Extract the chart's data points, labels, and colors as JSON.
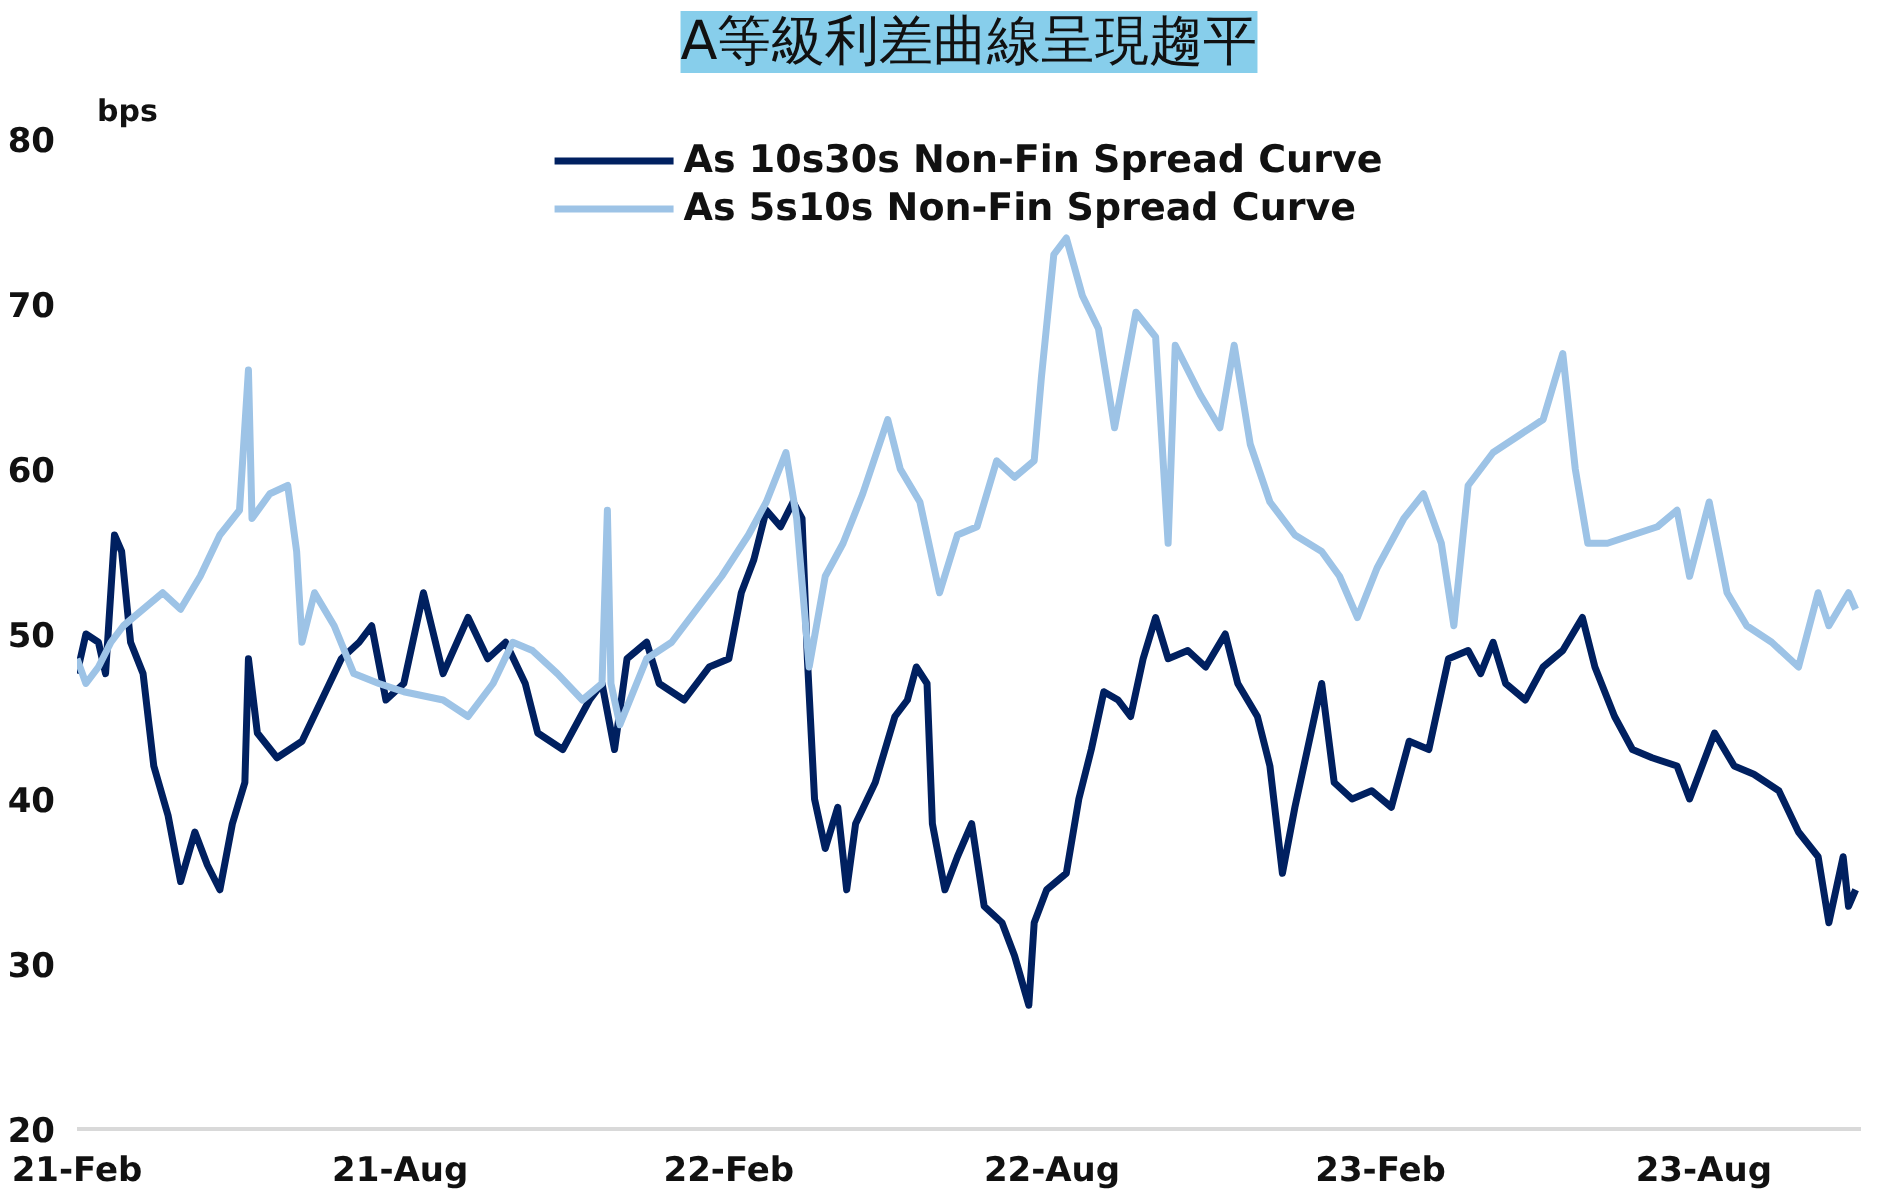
{
  "chart_data": {
    "type": "line",
    "title": "A等級利差曲線呈現趨平",
    "ylabel": "bps",
    "xlim": [
      "2021-02-01",
      "2023-10-28"
    ],
    "xticks": [
      {
        "value": "2021-02-01",
        "label": "21-Feb"
      },
      {
        "value": "2021-08-01",
        "label": "21-Aug"
      },
      {
        "value": "2022-02-01",
        "label": "22-Feb"
      },
      {
        "value": "2022-08-01",
        "label": "22-Aug"
      },
      {
        "value": "2023-02-01",
        "label": "23-Feb"
      },
      {
        "value": "2023-08-01",
        "label": "23-Aug"
      }
    ],
    "ylim": [
      20,
      80
    ],
    "yticks": [
      20,
      30,
      40,
      50,
      60,
      70,
      80
    ],
    "grid": false,
    "legend": "top",
    "marker": "none",
    "line_style": "solid",
    "series": [
      {
        "name": "As 10s30s Non-Fin Spread Curve",
        "color": "#002060",
        "x": [
          "2021-02-01",
          "2021-02-06",
          "2021-02-13",
          "2021-02-17",
          "2021-02-22",
          "2021-02-26",
          "2021-03-03",
          "2021-03-10",
          "2021-03-16",
          "2021-03-24",
          "2021-03-31",
          "2021-04-08",
          "2021-04-15",
          "2021-04-22",
          "2021-04-29",
          "2021-05-06",
          "2021-05-08",
          "2021-05-13",
          "2021-05-24",
          "2021-06-07",
          "2021-06-18",
          "2021-06-29",
          "2021-07-09",
          "2021-07-16",
          "2021-07-24",
          "2021-08-03",
          "2021-08-14",
          "2021-08-25",
          "2021-09-08",
          "2021-09-19",
          "2021-09-29",
          "2021-10-10",
          "2021-10-17",
          "2021-10-31",
          "2021-11-15",
          "2021-11-22",
          "2021-11-29",
          "2021-12-06",
          "2021-12-17",
          "2021-12-24",
          "2022-01-07",
          "2022-01-21",
          "2022-02-01",
          "2022-02-08",
          "2022-02-15",
          "2022-02-22",
          "2022-03-02",
          "2022-03-09",
          "2022-03-14",
          "2022-03-17",
          "2022-03-21",
          "2022-03-27",
          "2022-04-03",
          "2022-04-08",
          "2022-04-13",
          "2022-04-24",
          "2022-05-05",
          "2022-05-12",
          "2022-05-17",
          "2022-05-23",
          "2022-05-26",
          "2022-06-02",
          "2022-06-09",
          "2022-06-17",
          "2022-06-24",
          "2022-07-04",
          "2022-07-11",
          "2022-07-19",
          "2022-07-22",
          "2022-07-29",
          "2022-08-09",
          "2022-08-16",
          "2022-08-23",
          "2022-08-30",
          "2022-09-07",
          "2022-09-14",
          "2022-09-21",
          "2022-09-28",
          "2022-10-05",
          "2022-10-16",
          "2022-10-26",
          "2022-11-06",
          "2022-11-13",
          "2022-11-24",
          "2022-12-01",
          "2022-12-08",
          "2022-12-15",
          "2022-12-22",
          "2022-12-30",
          "2023-01-06",
          "2023-01-16",
          "2023-01-27",
          "2023-02-07",
          "2023-02-17",
          "2023-02-28",
          "2023-03-11",
          "2023-03-22",
          "2023-03-29",
          "2023-04-05",
          "2023-04-12",
          "2023-04-23",
          "2023-05-03",
          "2023-05-14",
          "2023-05-25",
          "2023-06-01",
          "2023-06-12",
          "2023-06-22",
          "2023-07-03",
          "2023-07-17",
          "2023-07-24",
          "2023-08-07",
          "2023-08-18",
          "2023-08-29",
          "2023-09-12",
          "2023-09-23",
          "2023-10-04",
          "2023-10-10",
          "2023-10-18",
          "2023-10-21",
          "2023-10-25"
        ],
        "values": [
          47.6,
          50,
          49.5,
          47.6,
          56,
          55,
          49.5,
          47.6,
          42,
          39,
          35,
          38,
          36,
          34.5,
          38.5,
          41,
          48.5,
          44,
          42.5,
          43.5,
          46,
          48.5,
          49.5,
          50.5,
          46,
          47,
          52.5,
          47.6,
          51,
          48.5,
          49.5,
          47,
          44,
          43,
          46,
          47,
          43,
          48.5,
          49.5,
          47,
          46,
          48,
          48.5,
          52.5,
          54.5,
          57.5,
          56.5,
          58,
          57,
          48.5,
          40,
          37,
          39.5,
          34.5,
          38.5,
          41,
          45,
          46,
          48,
          47,
          38.5,
          34.5,
          36.5,
          38.5,
          33.5,
          32.5,
          30.5,
          27.5,
          32.5,
          34.5,
          35.5,
          40,
          43,
          46.5,
          46,
          45,
          48.5,
          51,
          48.5,
          49,
          48,
          50,
          47,
          45,
          42,
          35.5,
          39.5,
          43,
          47,
          41,
          40,
          40.5,
          39.5,
          43.5,
          43,
          48.5,
          49,
          47.6,
          49.5,
          47,
          46,
          48,
          49,
          51,
          48,
          45,
          43,
          42.5,
          42,
          40,
          44,
          42,
          41.5,
          40.5,
          38,
          36.5,
          32.5,
          36.5,
          33.5,
          34.5
        ]
      },
      {
        "name": "As 5s10s Non-Fin Spread Curve",
        "color": "#9dc3e6",
        "x": [
          "2021-02-01",
          "2021-02-06",
          "2021-02-13",
          "2021-02-20",
          "2021-02-27",
          "2021-03-10",
          "2021-03-21",
          "2021-03-31",
          "2021-04-11",
          "2021-04-22",
          "2021-05-03",
          "2021-05-08",
          "2021-05-10",
          "2021-05-20",
          "2021-05-30",
          "2021-06-04",
          "2021-06-07",
          "2021-06-14",
          "2021-06-25",
          "2021-07-06",
          "2021-07-20",
          "2021-08-03",
          "2021-08-25",
          "2021-09-08",
          "2021-09-22",
          "2021-10-03",
          "2021-10-14",
          "2021-10-28",
          "2021-11-11",
          "2021-11-22",
          "2021-11-25",
          "2021-11-27",
          "2021-12-02",
          "2021-12-17",
          "2021-12-31",
          "2022-01-14",
          "2022-01-28",
          "2022-02-12",
          "2022-02-22",
          "2022-03-05",
          "2022-03-11",
          "2022-03-18",
          "2022-03-27",
          "2022-04-06",
          "2022-04-17",
          "2022-05-01",
          "2022-05-08",
          "2022-05-19",
          "2022-05-30",
          "2022-06-09",
          "2022-06-20",
          "2022-07-01",
          "2022-07-11",
          "2022-07-22",
          "2022-07-26",
          "2022-08-02",
          "2022-08-09",
          "2022-08-18",
          "2022-08-27",
          "2022-09-05",
          "2022-09-17",
          "2022-09-28",
          "2022-10-05",
          "2022-10-09",
          "2022-10-23",
          "2022-11-03",
          "2022-11-11",
          "2022-11-20",
          "2022-12-01",
          "2022-12-15",
          "2022-12-30",
          "2023-01-09",
          "2023-01-19",
          "2023-01-30",
          "2023-02-14",
          "2023-02-25",
          "2023-03-07",
          "2023-03-14",
          "2023-03-22",
          "2023-04-05",
          "2023-04-19",
          "2023-05-03",
          "2023-05-14",
          "2023-05-21",
          "2023-05-28",
          "2023-06-08",
          "2023-06-22",
          "2023-07-06",
          "2023-07-17",
          "2023-07-24",
          "2023-08-04",
          "2023-08-14",
          "2023-08-25",
          "2023-09-08",
          "2023-09-23",
          "2023-10-04",
          "2023-10-10",
          "2023-10-21",
          "2023-10-25"
        ],
        "values": [
          48.5,
          47,
          48,
          49.5,
          50.5,
          51.5,
          52.5,
          51.5,
          53.5,
          56,
          57.5,
          66,
          57,
          58.5,
          59,
          55,
          49.5,
          52.5,
          50.5,
          47.6,
          47,
          46.5,
          46,
          45,
          47,
          49.5,
          49,
          47.6,
          46,
          47,
          57.5,
          47,
          44.5,
          48.5,
          49.5,
          51.5,
          53.5,
          56,
          58,
          61,
          57,
          48,
          53.5,
          55.5,
          58.5,
          63,
          60,
          58,
          52.5,
          56,
          56.5,
          60.5,
          59.5,
          60.5,
          65.5,
          73,
          74,
          70.5,
          68.5,
          62.5,
          69.5,
          68,
          55.5,
          67.5,
          64.5,
          62.5,
          67.5,
          61.5,
          58,
          56,
          55,
          53.5,
          51,
          54,
          57,
          58.5,
          55.5,
          50.5,
          59,
          61,
          62,
          63,
          67,
          60,
          55.5,
          55.5,
          56,
          56.5,
          57.5,
          53.5,
          58,
          52.5,
          50.5,
          49.5,
          48,
          52.5,
          50.5,
          52.5,
          51.5
        ]
      }
    ]
  }
}
